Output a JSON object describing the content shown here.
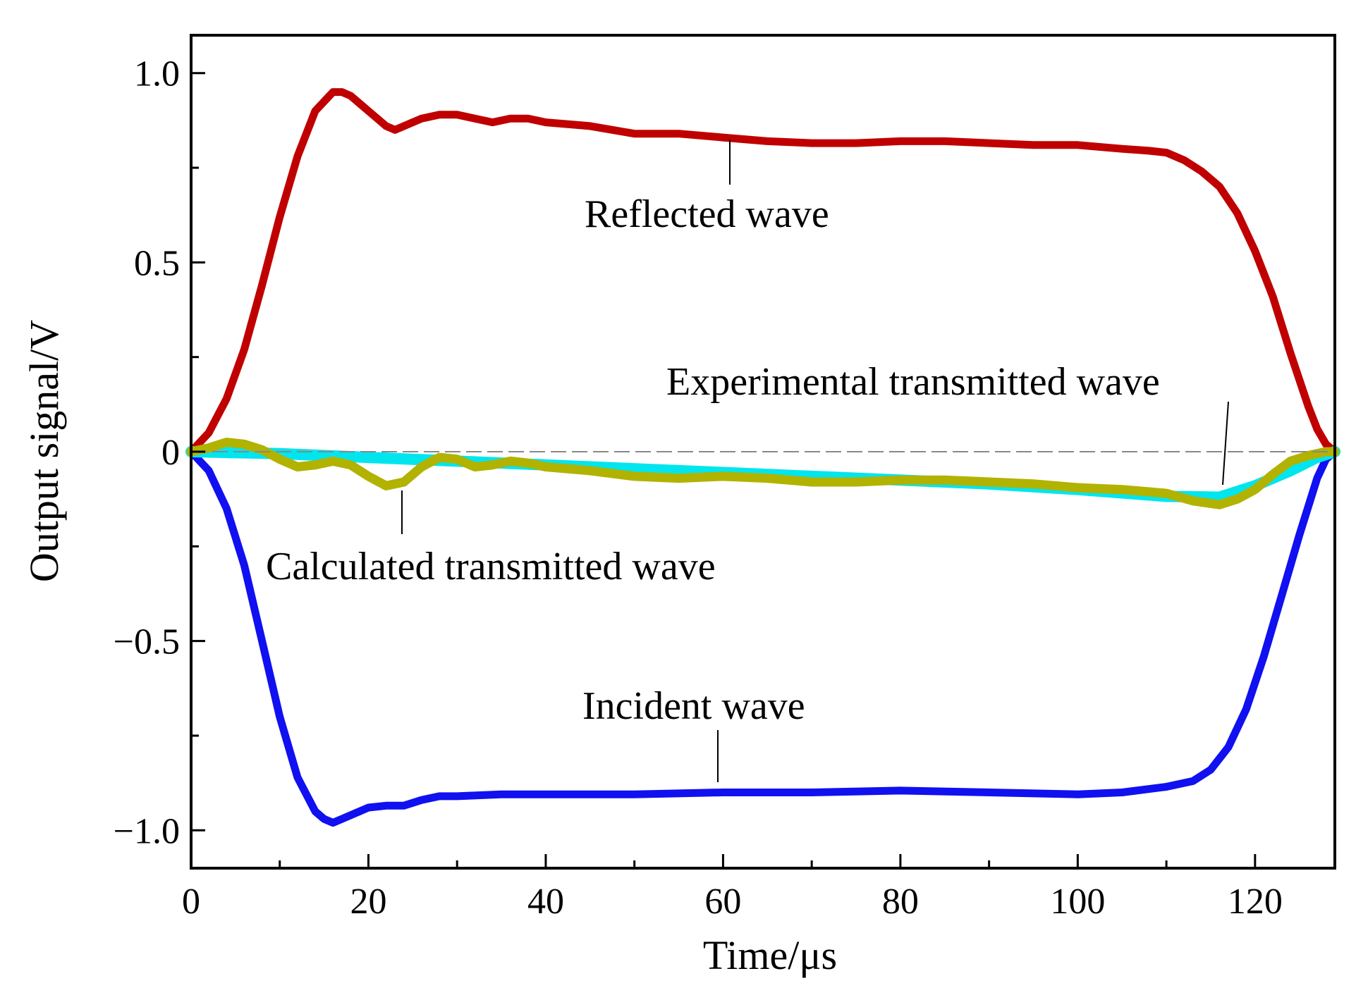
{
  "chart_data": {
    "type": "line",
    "title": "",
    "xlabel": "Time/μs",
    "ylabel": "Output signal/V",
    "xlim": [
      0,
      129
    ],
    "ylim": [
      -1.1,
      1.1
    ],
    "x_ticks": [
      0,
      20,
      40,
      60,
      80,
      100,
      120
    ],
    "x_tick_labels": [
      "0",
      "20",
      "40",
      "60",
      "80",
      "100",
      "120"
    ],
    "y_ticks": [
      1.0,
      0.5,
      0,
      -0.5,
      -1.0
    ],
    "y_tick_labels": [
      "1.0",
      "0.5",
      "0",
      "−0.5",
      "−1.0"
    ],
    "zero_reference_line": true,
    "grid": false,
    "series": [
      {
        "name": "Reflected wave",
        "color": "#c00000",
        "x": [
          0,
          2,
          4,
          6,
          8,
          10,
          12,
          14,
          16,
          17,
          18,
          20,
          22,
          23,
          24,
          26,
          28,
          30,
          32,
          34,
          36,
          38,
          40,
          45,
          50,
          55,
          60,
          65,
          70,
          75,
          80,
          85,
          90,
          95,
          100,
          105,
          108,
          110,
          112,
          114,
          116,
          118,
          120,
          122,
          124,
          126,
          127,
          128,
          129
        ],
        "y": [
          0,
          0.05,
          0.14,
          0.27,
          0.44,
          0.62,
          0.78,
          0.9,
          0.95,
          0.95,
          0.94,
          0.9,
          0.86,
          0.85,
          0.86,
          0.88,
          0.89,
          0.89,
          0.88,
          0.87,
          0.88,
          0.88,
          0.87,
          0.86,
          0.84,
          0.84,
          0.83,
          0.82,
          0.815,
          0.815,
          0.82,
          0.82,
          0.815,
          0.81,
          0.81,
          0.8,
          0.795,
          0.79,
          0.77,
          0.74,
          0.7,
          0.63,
          0.53,
          0.41,
          0.26,
          0.12,
          0.06,
          0.02,
          0
        ]
      },
      {
        "name": "Incident wave",
        "color": "#1010f0",
        "x": [
          0,
          2,
          4,
          6,
          8,
          10,
          12,
          14,
          15,
          16,
          17,
          18,
          20,
          22,
          24,
          26,
          28,
          30,
          35,
          40,
          50,
          60,
          70,
          80,
          90,
          100,
          105,
          110,
          113,
          115,
          117,
          119,
          121,
          123,
          125,
          127,
          128,
          129
        ],
        "y": [
          0,
          -0.05,
          -0.15,
          -0.3,
          -0.5,
          -0.7,
          -0.86,
          -0.95,
          -0.97,
          -0.98,
          -0.97,
          -0.96,
          -0.94,
          -0.935,
          -0.935,
          -0.92,
          -0.91,
          -0.91,
          -0.905,
          -0.905,
          -0.905,
          -0.9,
          -0.9,
          -0.895,
          -0.9,
          -0.905,
          -0.9,
          -0.885,
          -0.87,
          -0.84,
          -0.78,
          -0.68,
          -0.54,
          -0.38,
          -0.22,
          -0.07,
          -0.02,
          0
        ]
      },
      {
        "name": "Experimental transmitted wave",
        "color": "#00e5ee",
        "x": [
          0,
          10,
          20,
          30,
          40,
          50,
          60,
          70,
          80,
          90,
          100,
          110,
          116,
          120,
          124,
          127,
          129
        ],
        "y": [
          0,
          -0.005,
          -0.015,
          -0.025,
          -0.035,
          -0.045,
          -0.055,
          -0.065,
          -0.075,
          -0.085,
          -0.1,
          -0.118,
          -0.12,
          -0.09,
          -0.05,
          -0.015,
          0
        ]
      },
      {
        "name": "Calculated transmitted wave",
        "color": "#b2b200",
        "x": [
          0,
          2,
          4,
          6,
          8,
          10,
          12,
          14,
          16,
          18,
          20,
          22,
          24,
          26,
          28,
          30,
          32,
          34,
          36,
          38,
          40,
          45,
          50,
          55,
          60,
          65,
          70,
          75,
          80,
          85,
          90,
          95,
          100,
          105,
          110,
          113,
          116,
          118,
          120,
          122,
          124,
          126,
          128,
          129
        ],
        "y": [
          0,
          0.01,
          0.025,
          0.02,
          0.005,
          -0.02,
          -0.04,
          -0.035,
          -0.025,
          -0.035,
          -0.065,
          -0.09,
          -0.08,
          -0.04,
          -0.015,
          -0.02,
          -0.04,
          -0.035,
          -0.025,
          -0.03,
          -0.04,
          -0.05,
          -0.065,
          -0.07,
          -0.065,
          -0.07,
          -0.08,
          -0.08,
          -0.075,
          -0.075,
          -0.08,
          -0.085,
          -0.095,
          -0.1,
          -0.11,
          -0.13,
          -0.14,
          -0.125,
          -0.1,
          -0.06,
          -0.025,
          -0.01,
          0,
          0
        ]
      }
    ],
    "annotations": [
      {
        "text": "Reflected wave",
        "for": "Reflected wave"
      },
      {
        "text": "Experimental transmitted wave",
        "for": "Experimental transmitted wave"
      },
      {
        "text": "Calculated transmitted wave",
        "for": "Calculated transmitted wave"
      },
      {
        "text": "Incident wave",
        "for": "Incident wave"
      }
    ]
  }
}
